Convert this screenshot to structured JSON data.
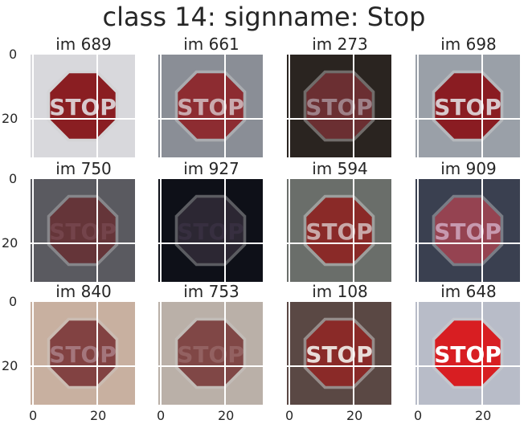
{
  "title": "class 14: signname: Stop",
  "ticks": {
    "y0": "0",
    "y20": "20",
    "x0": "0",
    "x20": "20"
  },
  "panels": [
    {
      "label": "im 689",
      "bg": "#d8d8dc",
      "sign": "#8a1e22",
      "text": "#d8c8cc",
      "opacity": 1.0
    },
    {
      "label": "im 661",
      "bg": "#8a8e96",
      "sign": "#8a1e24",
      "text": "#d0b8bc",
      "opacity": 0.9
    },
    {
      "label": "im 273",
      "bg": "#2a2420",
      "sign": "#6a2428",
      "text": "#a89098",
      "opacity": 0.85
    },
    {
      "label": "im 698",
      "bg": "#9aa0a8",
      "sign": "#8a1c22",
      "text": "#d8c8cc",
      "opacity": 1.0
    },
    {
      "label": "im 750",
      "bg": "#5a5a60",
      "sign": "#5a1a1e",
      "text": "#7a4a52",
      "opacity": 0.75
    },
    {
      "label": "im 927",
      "bg": "#0e1018",
      "sign": "#201a28",
      "text": "#3a3244",
      "opacity": 0.8
    },
    {
      "label": "im 594",
      "bg": "#6a6e6a",
      "sign": "#8a2a28",
      "text": "#c8a8a8",
      "opacity": 1.0
    },
    {
      "label": "im 909",
      "bg": "#3a4050",
      "sign": "#9a3848",
      "text": "#d0a8c0",
      "opacity": 0.85
    },
    {
      "label": "im 840",
      "bg": "#c8b0a0",
      "sign": "#6a1a1c",
      "text": "#b08890",
      "opacity": 0.75
    },
    {
      "label": "im 753",
      "bg": "#bab0a8",
      "sign": "#6a2020",
      "text": "#9a6a6a",
      "opacity": 0.75
    },
    {
      "label": "im 108",
      "bg": "#5a4844",
      "sign": "#8a2a28",
      "text": "#e8dcd8",
      "opacity": 1.0
    },
    {
      "label": "im 648",
      "bg": "#b8bcc8",
      "sign": "#d81e22",
      "text": "#ffffff",
      "opacity": 1.0
    }
  ]
}
